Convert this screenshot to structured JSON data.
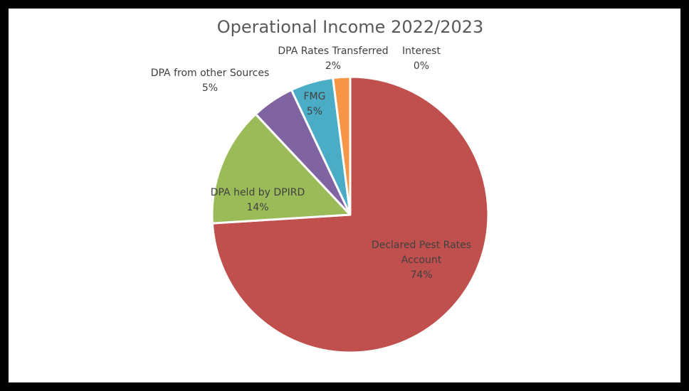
{
  "chart_data": {
    "type": "pie",
    "title": "Operational Income 2022/2023",
    "slices": [
      {
        "name": "Declared Pest Rates Account",
        "label_lines": [
          "Declared Pest Rates",
          "Account"
        ],
        "value": 74,
        "value_label": "74%",
        "color": "#C0504D"
      },
      {
        "name": "DPA held by DPIRD",
        "label_lines": [
          "DPA held by DPIRD"
        ],
        "value": 14,
        "value_label": "14%",
        "color": "#9BBB59"
      },
      {
        "name": "DPA from other Sources",
        "label_lines": [
          "DPA from other Sources"
        ],
        "value": 5,
        "value_label": "5%",
        "color": "#8064A2"
      },
      {
        "name": "FMG",
        "label_lines": [
          "FMG"
        ],
        "value": 5,
        "value_label": "5%",
        "color": "#4BACC6"
      },
      {
        "name": "DPA Rates Transferred",
        "label_lines": [
          "DPA Rates Transferred"
        ],
        "value": 2,
        "value_label": "2%",
        "color": "#F79646"
      },
      {
        "name": "Interest",
        "label_lines": [
          "Interest"
        ],
        "value": 0,
        "value_label": "0%",
        "color": "#2C4D75"
      }
    ],
    "legend": "none",
    "data_labels": "category name and percentage"
  }
}
